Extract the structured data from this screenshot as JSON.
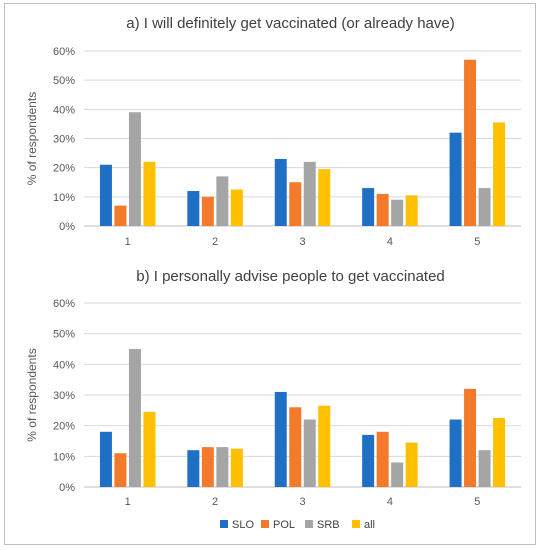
{
  "colors": {
    "SLO": "#1f6fc5",
    "POL": "#f47a2b",
    "SRB": "#a5a5a5",
    "all": "#ffc000"
  },
  "legend": [
    "SLO",
    "POL",
    "SRB",
    "all"
  ],
  "chart_data": [
    {
      "type": "bar",
      "title": "a) I will definitely get vaccinated (or already have)",
      "xlabel": "",
      "ylabel": "% of respondents",
      "ylim": [
        0,
        60
      ],
      "yticks": [
        "0%",
        "10%",
        "20%",
        "30%",
        "40%",
        "50%",
        "60%"
      ],
      "grid": true,
      "legend_position": "none",
      "categories": [
        "1",
        "2",
        "3",
        "4",
        "5"
      ],
      "series": [
        {
          "name": "SLO",
          "values": [
            21,
            12,
            23,
            13,
            32
          ]
        },
        {
          "name": "POL",
          "values": [
            7,
            10,
            15,
            11,
            57
          ]
        },
        {
          "name": "SRB",
          "values": [
            39,
            17,
            22,
            9,
            13
          ]
        },
        {
          "name": "all",
          "values": [
            22,
            12.5,
            19.5,
            10.5,
            35.5
          ]
        }
      ]
    },
    {
      "type": "bar",
      "title": "b) I personally advise people to get vaccinated",
      "xlabel": "",
      "ylabel": "% of respondents",
      "ylim": [
        0,
        60
      ],
      "yticks": [
        "0%",
        "10%",
        "20%",
        "30%",
        "40%",
        "50%",
        "60%"
      ],
      "grid": true,
      "legend_position": "bottom",
      "categories": [
        "1",
        "2",
        "3",
        "4",
        "5"
      ],
      "series": [
        {
          "name": "SLO",
          "values": [
            18,
            12,
            31,
            17,
            22
          ]
        },
        {
          "name": "POL",
          "values": [
            11,
            13,
            26,
            18,
            32
          ]
        },
        {
          "name": "SRB",
          "values": [
            45,
            13,
            22,
            8,
            12
          ]
        },
        {
          "name": "all",
          "values": [
            24.5,
            12.5,
            26.5,
            14.5,
            22.5
          ]
        }
      ]
    }
  ]
}
